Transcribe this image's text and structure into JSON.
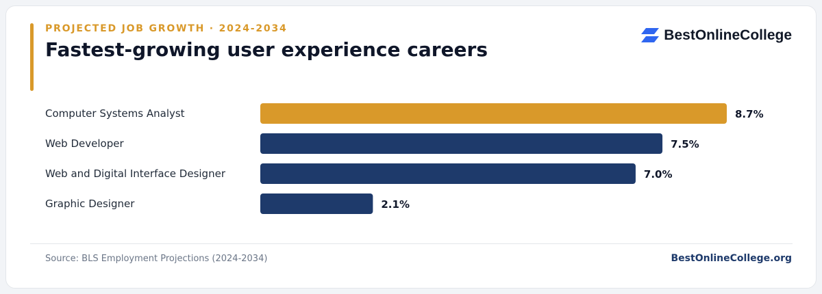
{
  "header": {
    "eyebrow": "PROJECTED JOB GROWTH · 2024-2034",
    "title": "Fastest-growing user experience careers"
  },
  "brand": {
    "name": "BestOnlineCollege",
    "logo_icon": "stacked-parallelogram-logo-icon",
    "logo_color": "#2f66f0"
  },
  "colors": {
    "highlight": "#d9992a",
    "default_bar": "#1e3a6b",
    "label_text": "#1f2937",
    "value_text": "#0f1629"
  },
  "chart_data": {
    "type": "bar",
    "orientation": "horizontal",
    "categories": [
      "Computer Systems Analyst",
      "Web Developer",
      "Web and Digital Interface Designer",
      "Graphic Designer"
    ],
    "values": [
      8.7,
      7.5,
      7.0,
      2.1
    ],
    "value_labels": [
      "8.7%",
      "7.5%",
      "7.0%",
      "2.1%"
    ],
    "highlight_index": 0,
    "xlim": [
      0,
      8.7
    ],
    "grid": false,
    "legend": "none"
  },
  "footer": {
    "source": "Source: BLS Employment Projections (2024-2034)",
    "site": "BestOnlineCollege.org"
  }
}
